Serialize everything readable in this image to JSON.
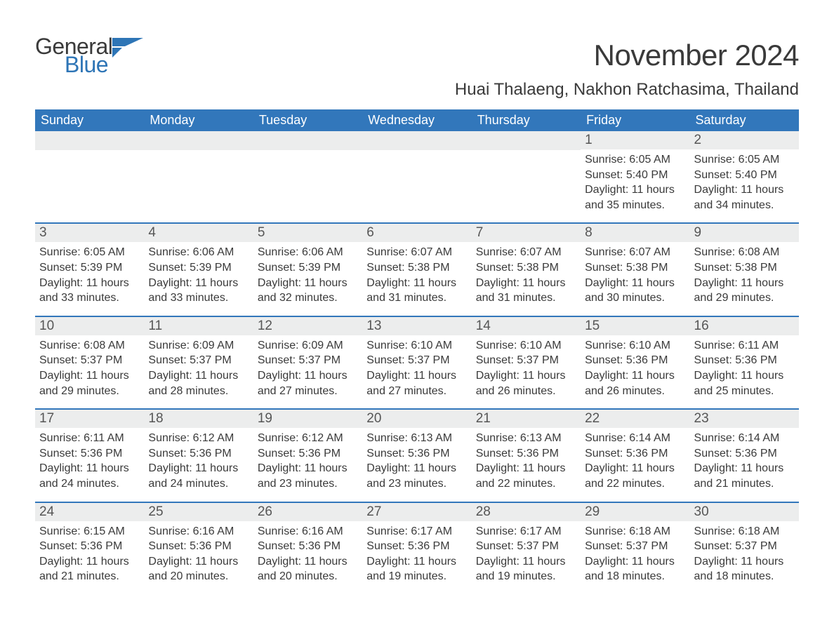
{
  "logo": {
    "text_general": "General",
    "text_blue": "Blue",
    "icon_color": "#2e75b6"
  },
  "title": "November 2024",
  "subtitle": "Huai Thalaeng, Nakhon Ratchasima, Thailand",
  "colors": {
    "header_bg": "#3277bb",
    "header_text": "#ffffff",
    "daynum_bg": "#eceded",
    "daynum_text": "#565656",
    "body_text": "#3a3a3a",
    "divider": "#3277bb",
    "page_bg": "#ffffff",
    "logo_blue": "#2e75b6"
  },
  "typography": {
    "title_fontsize": 42,
    "subtitle_fontsize": 24,
    "weekday_fontsize": 18,
    "daynum_fontsize": 19,
    "body_fontsize": 16,
    "font_family": "Segoe UI"
  },
  "layout": {
    "type": "calendar",
    "columns": 7,
    "rows": 5,
    "aspect": "1188x918"
  },
  "weekdays": [
    "Sunday",
    "Monday",
    "Tuesday",
    "Wednesday",
    "Thursday",
    "Friday",
    "Saturday"
  ],
  "weeks": [
    [
      {
        "empty": true
      },
      {
        "empty": true
      },
      {
        "empty": true
      },
      {
        "empty": true
      },
      {
        "empty": true
      },
      {
        "num": "1",
        "sunrise": "Sunrise: 6:05 AM",
        "sunset": "Sunset: 5:40 PM",
        "daylight1": "Daylight: 11 hours",
        "daylight2": "and 35 minutes."
      },
      {
        "num": "2",
        "sunrise": "Sunrise: 6:05 AM",
        "sunset": "Sunset: 5:40 PM",
        "daylight1": "Daylight: 11 hours",
        "daylight2": "and 34 minutes."
      }
    ],
    [
      {
        "num": "3",
        "sunrise": "Sunrise: 6:05 AM",
        "sunset": "Sunset: 5:39 PM",
        "daylight1": "Daylight: 11 hours",
        "daylight2": "and 33 minutes."
      },
      {
        "num": "4",
        "sunrise": "Sunrise: 6:06 AM",
        "sunset": "Sunset: 5:39 PM",
        "daylight1": "Daylight: 11 hours",
        "daylight2": "and 33 minutes."
      },
      {
        "num": "5",
        "sunrise": "Sunrise: 6:06 AM",
        "sunset": "Sunset: 5:39 PM",
        "daylight1": "Daylight: 11 hours",
        "daylight2": "and 32 minutes."
      },
      {
        "num": "6",
        "sunrise": "Sunrise: 6:07 AM",
        "sunset": "Sunset: 5:38 PM",
        "daylight1": "Daylight: 11 hours",
        "daylight2": "and 31 minutes."
      },
      {
        "num": "7",
        "sunrise": "Sunrise: 6:07 AM",
        "sunset": "Sunset: 5:38 PM",
        "daylight1": "Daylight: 11 hours",
        "daylight2": "and 31 minutes."
      },
      {
        "num": "8",
        "sunrise": "Sunrise: 6:07 AM",
        "sunset": "Sunset: 5:38 PM",
        "daylight1": "Daylight: 11 hours",
        "daylight2": "and 30 minutes."
      },
      {
        "num": "9",
        "sunrise": "Sunrise: 6:08 AM",
        "sunset": "Sunset: 5:38 PM",
        "daylight1": "Daylight: 11 hours",
        "daylight2": "and 29 minutes."
      }
    ],
    [
      {
        "num": "10",
        "sunrise": "Sunrise: 6:08 AM",
        "sunset": "Sunset: 5:37 PM",
        "daylight1": "Daylight: 11 hours",
        "daylight2": "and 29 minutes."
      },
      {
        "num": "11",
        "sunrise": "Sunrise: 6:09 AM",
        "sunset": "Sunset: 5:37 PM",
        "daylight1": "Daylight: 11 hours",
        "daylight2": "and 28 minutes."
      },
      {
        "num": "12",
        "sunrise": "Sunrise: 6:09 AM",
        "sunset": "Sunset: 5:37 PM",
        "daylight1": "Daylight: 11 hours",
        "daylight2": "and 27 minutes."
      },
      {
        "num": "13",
        "sunrise": "Sunrise: 6:10 AM",
        "sunset": "Sunset: 5:37 PM",
        "daylight1": "Daylight: 11 hours",
        "daylight2": "and 27 minutes."
      },
      {
        "num": "14",
        "sunrise": "Sunrise: 6:10 AM",
        "sunset": "Sunset: 5:37 PM",
        "daylight1": "Daylight: 11 hours",
        "daylight2": "and 26 minutes."
      },
      {
        "num": "15",
        "sunrise": "Sunrise: 6:10 AM",
        "sunset": "Sunset: 5:36 PM",
        "daylight1": "Daylight: 11 hours",
        "daylight2": "and 26 minutes."
      },
      {
        "num": "16",
        "sunrise": "Sunrise: 6:11 AM",
        "sunset": "Sunset: 5:36 PM",
        "daylight1": "Daylight: 11 hours",
        "daylight2": "and 25 minutes."
      }
    ],
    [
      {
        "num": "17",
        "sunrise": "Sunrise: 6:11 AM",
        "sunset": "Sunset: 5:36 PM",
        "daylight1": "Daylight: 11 hours",
        "daylight2": "and 24 minutes."
      },
      {
        "num": "18",
        "sunrise": "Sunrise: 6:12 AM",
        "sunset": "Sunset: 5:36 PM",
        "daylight1": "Daylight: 11 hours",
        "daylight2": "and 24 minutes."
      },
      {
        "num": "19",
        "sunrise": "Sunrise: 6:12 AM",
        "sunset": "Sunset: 5:36 PM",
        "daylight1": "Daylight: 11 hours",
        "daylight2": "and 23 minutes."
      },
      {
        "num": "20",
        "sunrise": "Sunrise: 6:13 AM",
        "sunset": "Sunset: 5:36 PM",
        "daylight1": "Daylight: 11 hours",
        "daylight2": "and 23 minutes."
      },
      {
        "num": "21",
        "sunrise": "Sunrise: 6:13 AM",
        "sunset": "Sunset: 5:36 PM",
        "daylight1": "Daylight: 11 hours",
        "daylight2": "and 22 minutes."
      },
      {
        "num": "22",
        "sunrise": "Sunrise: 6:14 AM",
        "sunset": "Sunset: 5:36 PM",
        "daylight1": "Daylight: 11 hours",
        "daylight2": "and 22 minutes."
      },
      {
        "num": "23",
        "sunrise": "Sunrise: 6:14 AM",
        "sunset": "Sunset: 5:36 PM",
        "daylight1": "Daylight: 11 hours",
        "daylight2": "and 21 minutes."
      }
    ],
    [
      {
        "num": "24",
        "sunrise": "Sunrise: 6:15 AM",
        "sunset": "Sunset: 5:36 PM",
        "daylight1": "Daylight: 11 hours",
        "daylight2": "and 21 minutes."
      },
      {
        "num": "25",
        "sunrise": "Sunrise: 6:16 AM",
        "sunset": "Sunset: 5:36 PM",
        "daylight1": "Daylight: 11 hours",
        "daylight2": "and 20 minutes."
      },
      {
        "num": "26",
        "sunrise": "Sunrise: 6:16 AM",
        "sunset": "Sunset: 5:36 PM",
        "daylight1": "Daylight: 11 hours",
        "daylight2": "and 20 minutes."
      },
      {
        "num": "27",
        "sunrise": "Sunrise: 6:17 AM",
        "sunset": "Sunset: 5:36 PM",
        "daylight1": "Daylight: 11 hours",
        "daylight2": "and 19 minutes."
      },
      {
        "num": "28",
        "sunrise": "Sunrise: 6:17 AM",
        "sunset": "Sunset: 5:37 PM",
        "daylight1": "Daylight: 11 hours",
        "daylight2": "and 19 minutes."
      },
      {
        "num": "29",
        "sunrise": "Sunrise: 6:18 AM",
        "sunset": "Sunset: 5:37 PM",
        "daylight1": "Daylight: 11 hours",
        "daylight2": "and 18 minutes."
      },
      {
        "num": "30",
        "sunrise": "Sunrise: 6:18 AM",
        "sunset": "Sunset: 5:37 PM",
        "daylight1": "Daylight: 11 hours",
        "daylight2": "and 18 minutes."
      }
    ]
  ]
}
